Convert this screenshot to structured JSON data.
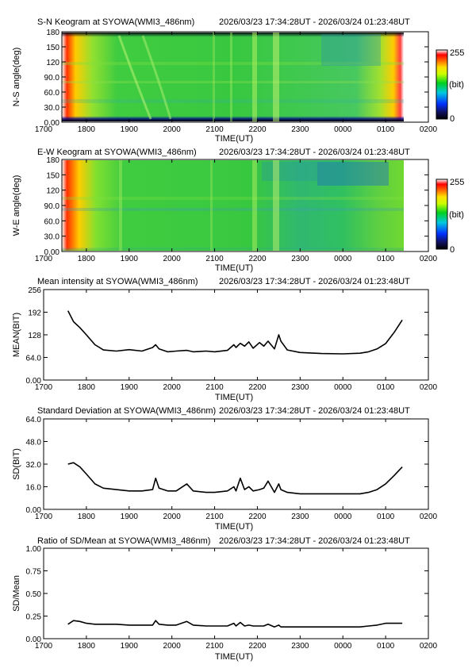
{
  "chart_data": [
    {
      "type": "heatmap",
      "title": "S-N Keogram at SYOWA(WMI3_486nm)",
      "time_range": "2026/03/23 17:34:28UT - 2026/03/24 01:23:48UT",
      "xlabel": "TIME(UT)",
      "ylabel": "N-S angle(deg)",
      "x_ticks": [
        "1700",
        "1800",
        "1900",
        "2000",
        "2100",
        "2200",
        "2300",
        "0000",
        "0100",
        "0200"
      ],
      "y_ticks": [
        "0.00",
        "30.0",
        "60.0",
        "90.0",
        "120",
        "150",
        "180"
      ],
      "ylim": [
        0,
        180
      ],
      "colorbar": {
        "max_label": "255",
        "unit_label": "(bit)",
        "min_label": "0"
      }
    },
    {
      "type": "heatmap",
      "title": "E-W Keogram at SYOWA(WMI3_486nm)",
      "time_range": "2026/03/23 17:34:28UT - 2026/03/24 01:23:48UT",
      "xlabel": "TIME(UT)",
      "ylabel": "W-E angle(deg)",
      "x_ticks": [
        "1700",
        "1800",
        "1900",
        "2000",
        "2100",
        "2200",
        "2300",
        "0000",
        "0100",
        "0200"
      ],
      "y_ticks": [
        "0.00",
        "30.0",
        "60.0",
        "90.0",
        "120",
        "150",
        "180"
      ],
      "ylim": [
        0,
        180
      ],
      "colorbar": {
        "max_label": "255",
        "unit_label": "(bit)",
        "min_label": "0"
      }
    },
    {
      "type": "line",
      "title": "Mean intensity at SYOWA(WMI3_486nm)",
      "time_range": "2026/03/23 17:34:28UT - 2026/03/24 01:23:48UT",
      "xlabel": "TIME(UT)",
      "ylabel": "MEAN(BIT)",
      "x_ticks": [
        "1700",
        "1800",
        "1900",
        "2000",
        "2100",
        "2200",
        "2300",
        "0000",
        "0100",
        "0200"
      ],
      "y_ticks": [
        "0.00",
        "64.0",
        "128",
        "192",
        "256"
      ],
      "ylim": [
        0,
        256
      ],
      "x_hours": [
        17.57,
        17.7,
        17.85,
        18.0,
        18.2,
        18.4,
        18.7,
        19.0,
        19.3,
        19.55,
        19.62,
        19.7,
        19.9,
        20.1,
        20.35,
        20.5,
        20.8,
        21.0,
        21.3,
        21.45,
        21.5,
        21.6,
        21.7,
        21.8,
        21.9,
        22.05,
        22.15,
        22.25,
        22.4,
        22.5,
        22.55,
        22.7,
        23.0,
        23.5,
        24.0,
        24.4,
        24.6,
        24.8,
        25.0,
        25.2,
        25.39
      ],
      "values": [
        196,
        165,
        148,
        128,
        100,
        85,
        82,
        86,
        82,
        92,
        100,
        88,
        80,
        82,
        84,
        80,
        82,
        80,
        84,
        100,
        92,
        104,
        96,
        108,
        90,
        106,
        96,
        110,
        88,
        128,
        110,
        85,
        78,
        75,
        74,
        76,
        80,
        88,
        103,
        135,
        170
      ]
    },
    {
      "type": "line",
      "title": "Standard Deviation at SYOWA(WMI3_486nm)",
      "time_range": "2026/03/23 17:34:28UT - 2026/03/24 01:23:48UT",
      "xlabel": "TIME(UT)",
      "ylabel": "SD(BIT)",
      "x_ticks": [
        "1700",
        "1800",
        "1900",
        "2000",
        "2100",
        "2200",
        "2300",
        "0000",
        "0100",
        "0200"
      ],
      "y_ticks": [
        "0.00",
        "16.0",
        "32.0",
        "48.0",
        "64.0"
      ],
      "ylim": [
        0,
        64
      ],
      "x_hours": [
        17.57,
        17.7,
        17.85,
        18.0,
        18.2,
        18.4,
        18.7,
        19.0,
        19.3,
        19.55,
        19.62,
        19.7,
        19.9,
        20.1,
        20.35,
        20.5,
        20.8,
        21.0,
        21.3,
        21.45,
        21.5,
        21.6,
        21.7,
        21.8,
        21.9,
        22.05,
        22.15,
        22.25,
        22.4,
        22.5,
        22.55,
        22.7,
        23.0,
        23.5,
        24.0,
        24.4,
        24.6,
        24.8,
        25.0,
        25.2,
        25.39
      ],
      "values": [
        32,
        33,
        30,
        25,
        18,
        15,
        14,
        13,
        13,
        14,
        22,
        15,
        13,
        13,
        18,
        13,
        12,
        12,
        13,
        16,
        13,
        22,
        14,
        16,
        13,
        14,
        15,
        20,
        12,
        18,
        14,
        12,
        11,
        11,
        11,
        11,
        12,
        14,
        18,
        24,
        30
      ]
    },
    {
      "type": "line",
      "title": "Ratio of SD/Mean at SYOWA(WMI3_486nm)",
      "time_range": "2026/03/23 17:34:28UT - 2026/03/24 01:23:48UT",
      "xlabel": "TIME(UT)",
      "ylabel": "SD/Mean",
      "x_ticks": [
        "1700",
        "1800",
        "1900",
        "2000",
        "2100",
        "2200",
        "2300",
        "0000",
        "0100",
        "0200"
      ],
      "y_ticks": [
        "0.00",
        "0.25",
        "0.50",
        "0.75",
        "1.00"
      ],
      "ylim": [
        0,
        1
      ],
      "x_hours": [
        17.57,
        17.7,
        17.85,
        18.0,
        18.2,
        18.4,
        18.7,
        19.0,
        19.3,
        19.55,
        19.62,
        19.7,
        19.9,
        20.1,
        20.35,
        20.5,
        20.8,
        21.0,
        21.3,
        21.45,
        21.5,
        21.6,
        21.7,
        21.8,
        21.9,
        22.05,
        22.15,
        22.25,
        22.4,
        22.5,
        22.55,
        22.7,
        23.0,
        23.5,
        24.0,
        24.4,
        24.6,
        24.8,
        25.0,
        25.2,
        25.39
      ],
      "values": [
        0.16,
        0.2,
        0.19,
        0.17,
        0.16,
        0.16,
        0.16,
        0.15,
        0.15,
        0.15,
        0.2,
        0.16,
        0.15,
        0.15,
        0.19,
        0.15,
        0.14,
        0.14,
        0.14,
        0.17,
        0.14,
        0.18,
        0.14,
        0.15,
        0.14,
        0.14,
        0.14,
        0.16,
        0.13,
        0.15,
        0.13,
        0.13,
        0.13,
        0.13,
        0.13,
        0.13,
        0.14,
        0.15,
        0.17,
        0.17,
        0.17
      ]
    }
  ]
}
